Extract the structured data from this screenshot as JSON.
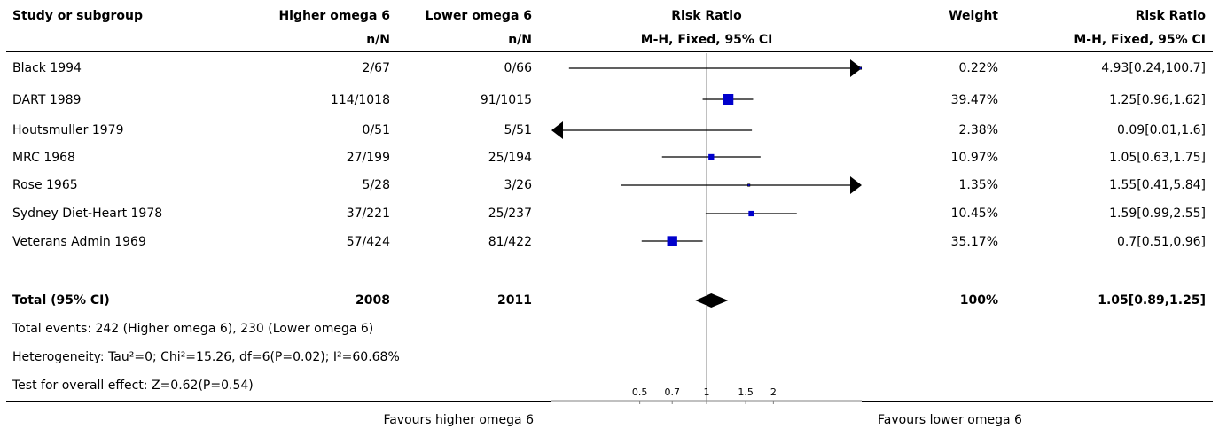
{
  "headers": {
    "study": "Study or subgroup",
    "exp": "Higher omega 6",
    "ctrl": "Lower omega 6",
    "rr_plot": "Risk Ratio",
    "weight": "Weight",
    "rr_text": "Risk Ratio",
    "exp_sub": "n/N",
    "ctrl_sub": "n/N",
    "rr_plot_sub": "M-H, Fixed, 95% CI",
    "rr_text_sub": "M-H, Fixed, 95% CI"
  },
  "footer": {
    "total_events": "Total events: 242 (Higher omega 6), 230 (Lower omega 6)",
    "heterogeneity": "Heterogeneity: Tau²=0; Chi²=15.26, df=6(P=0.02); I²=60.68%",
    "overall": "Test for overall effect: Z=0.62(P=0.54)",
    "favours_left": "Favours higher omega 6",
    "favours_right": "Favours lower omega 6"
  },
  "colors": {
    "marker": "#0000cc",
    "line": "#000000",
    "axis": "#808080"
  },
  "chart_data": {
    "type": "forest",
    "scale": "log",
    "xlim": [
      0.2,
      5
    ],
    "null_value": 1,
    "ticks": [
      {
        "v": 0.5,
        "label": "0.5"
      },
      {
        "v": 0.7,
        "label": "0.7"
      },
      {
        "v": 1,
        "label": "1"
      },
      {
        "v": 1.5,
        "label": "1.5"
      },
      {
        "v": 2,
        "label": "2"
      }
    ],
    "studies": [
      {
        "name": "Black 1994",
        "exp": "2/67",
        "ctrl": "0/66",
        "weight": "0.22%",
        "ci_text": "4.93[0.24,100.7]",
        "rr": 4.93,
        "lo": 0.24,
        "hi": 100.7,
        "w": 0.22
      },
      {
        "name": "DART 1989",
        "exp": "114/1018",
        "ctrl": "91/1015",
        "weight": "39.47%",
        "ci_text": "1.25[0.96,1.62]",
        "rr": 1.25,
        "lo": 0.96,
        "hi": 1.62,
        "w": 39.47
      },
      {
        "name": "Houtsmuller 1979",
        "exp": "0/51",
        "ctrl": "5/51",
        "weight": "2.38%",
        "ci_text": "0.09[0.01,1.6]",
        "rr": 0.09,
        "lo": 0.01,
        "hi": 1.6,
        "w": 2.38
      },
      {
        "name": "MRC 1968",
        "exp": "27/199",
        "ctrl": "25/194",
        "weight": "10.97%",
        "ci_text": "1.05[0.63,1.75]",
        "rr": 1.05,
        "lo": 0.63,
        "hi": 1.75,
        "w": 10.97
      },
      {
        "name": "Rose 1965",
        "exp": "5/28",
        "ctrl": "3/26",
        "weight": "1.35%",
        "ci_text": "1.55[0.41,5.84]",
        "rr": 1.55,
        "lo": 0.41,
        "hi": 5.84,
        "w": 1.35
      },
      {
        "name": "Sydney Diet-Heart 1978",
        "exp": "37/221",
        "ctrl": "25/237",
        "weight": "10.45%",
        "ci_text": "1.59[0.99,2.55]",
        "rr": 1.59,
        "lo": 0.99,
        "hi": 2.55,
        "w": 10.45
      },
      {
        "name": "Veterans Admin 1969",
        "exp": "57/424",
        "ctrl": "81/422",
        "weight": "35.17%",
        "ci_text": "0.7[0.51,0.96]",
        "rr": 0.7,
        "lo": 0.51,
        "hi": 0.96,
        "w": 35.17
      }
    ],
    "total": {
      "name": "Total (95% CI)",
      "exp": "2008",
      "ctrl": "2011",
      "weight": "100%",
      "ci_text": "1.05[0.89,1.25]",
      "rr": 1.05,
      "lo": 0.89,
      "hi": 1.25
    }
  }
}
